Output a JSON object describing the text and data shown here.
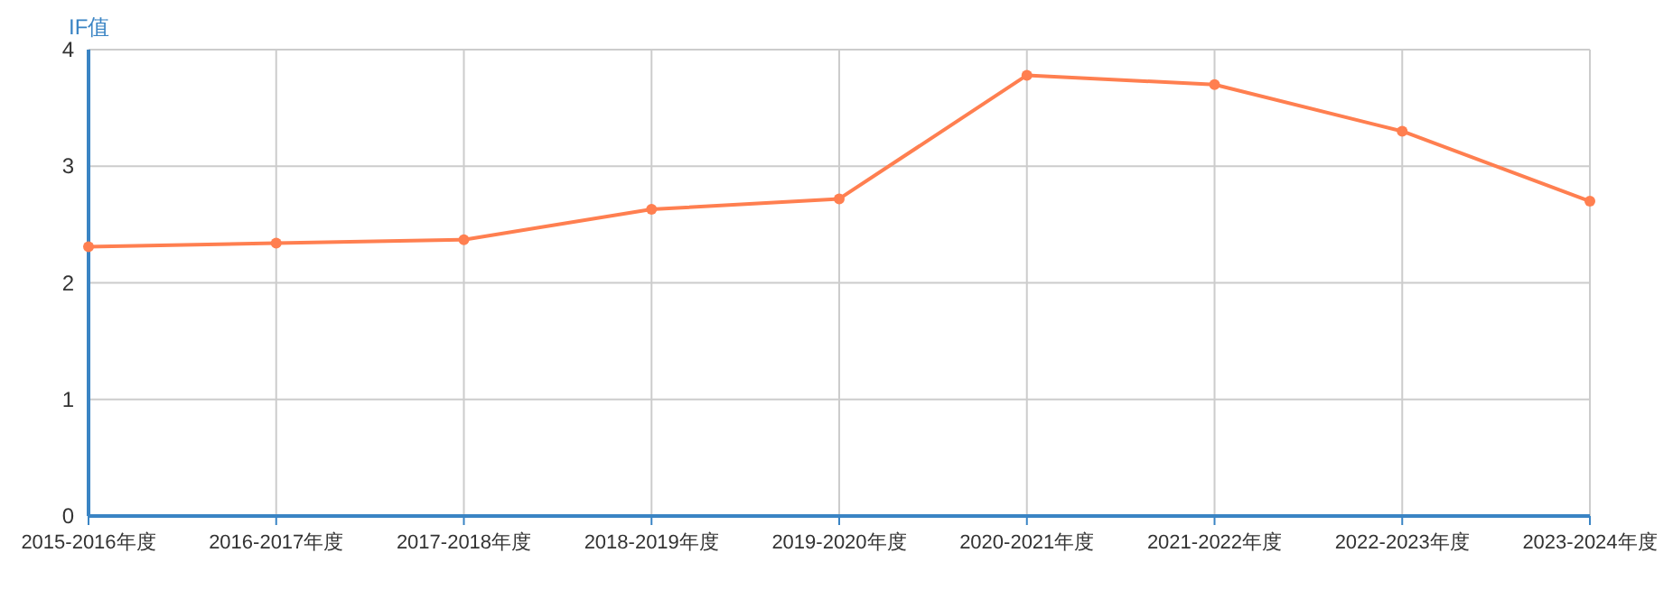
{
  "chart_data": {
    "type": "line",
    "ylabel": "IF值",
    "categories": [
      "2015-2016年度",
      "2016-2017年度",
      "2017-2018年度",
      "2018-2019年度",
      "2019-2020年度",
      "2020-2021年度",
      "2021-2022年度",
      "2022-2023年度",
      "2023-2024年度"
    ],
    "series": [
      {
        "color": "#ff7f50",
        "values": [
          2.31,
          2.34,
          2.37,
          2.63,
          2.72,
          3.78,
          3.7,
          3.3,
          2.7
        ]
      }
    ],
    "ylim": [
      0,
      4
    ],
    "yticks": [
      0,
      1,
      2,
      3,
      4
    ],
    "grid": true,
    "marker": "circle",
    "line_style": "solid"
  }
}
